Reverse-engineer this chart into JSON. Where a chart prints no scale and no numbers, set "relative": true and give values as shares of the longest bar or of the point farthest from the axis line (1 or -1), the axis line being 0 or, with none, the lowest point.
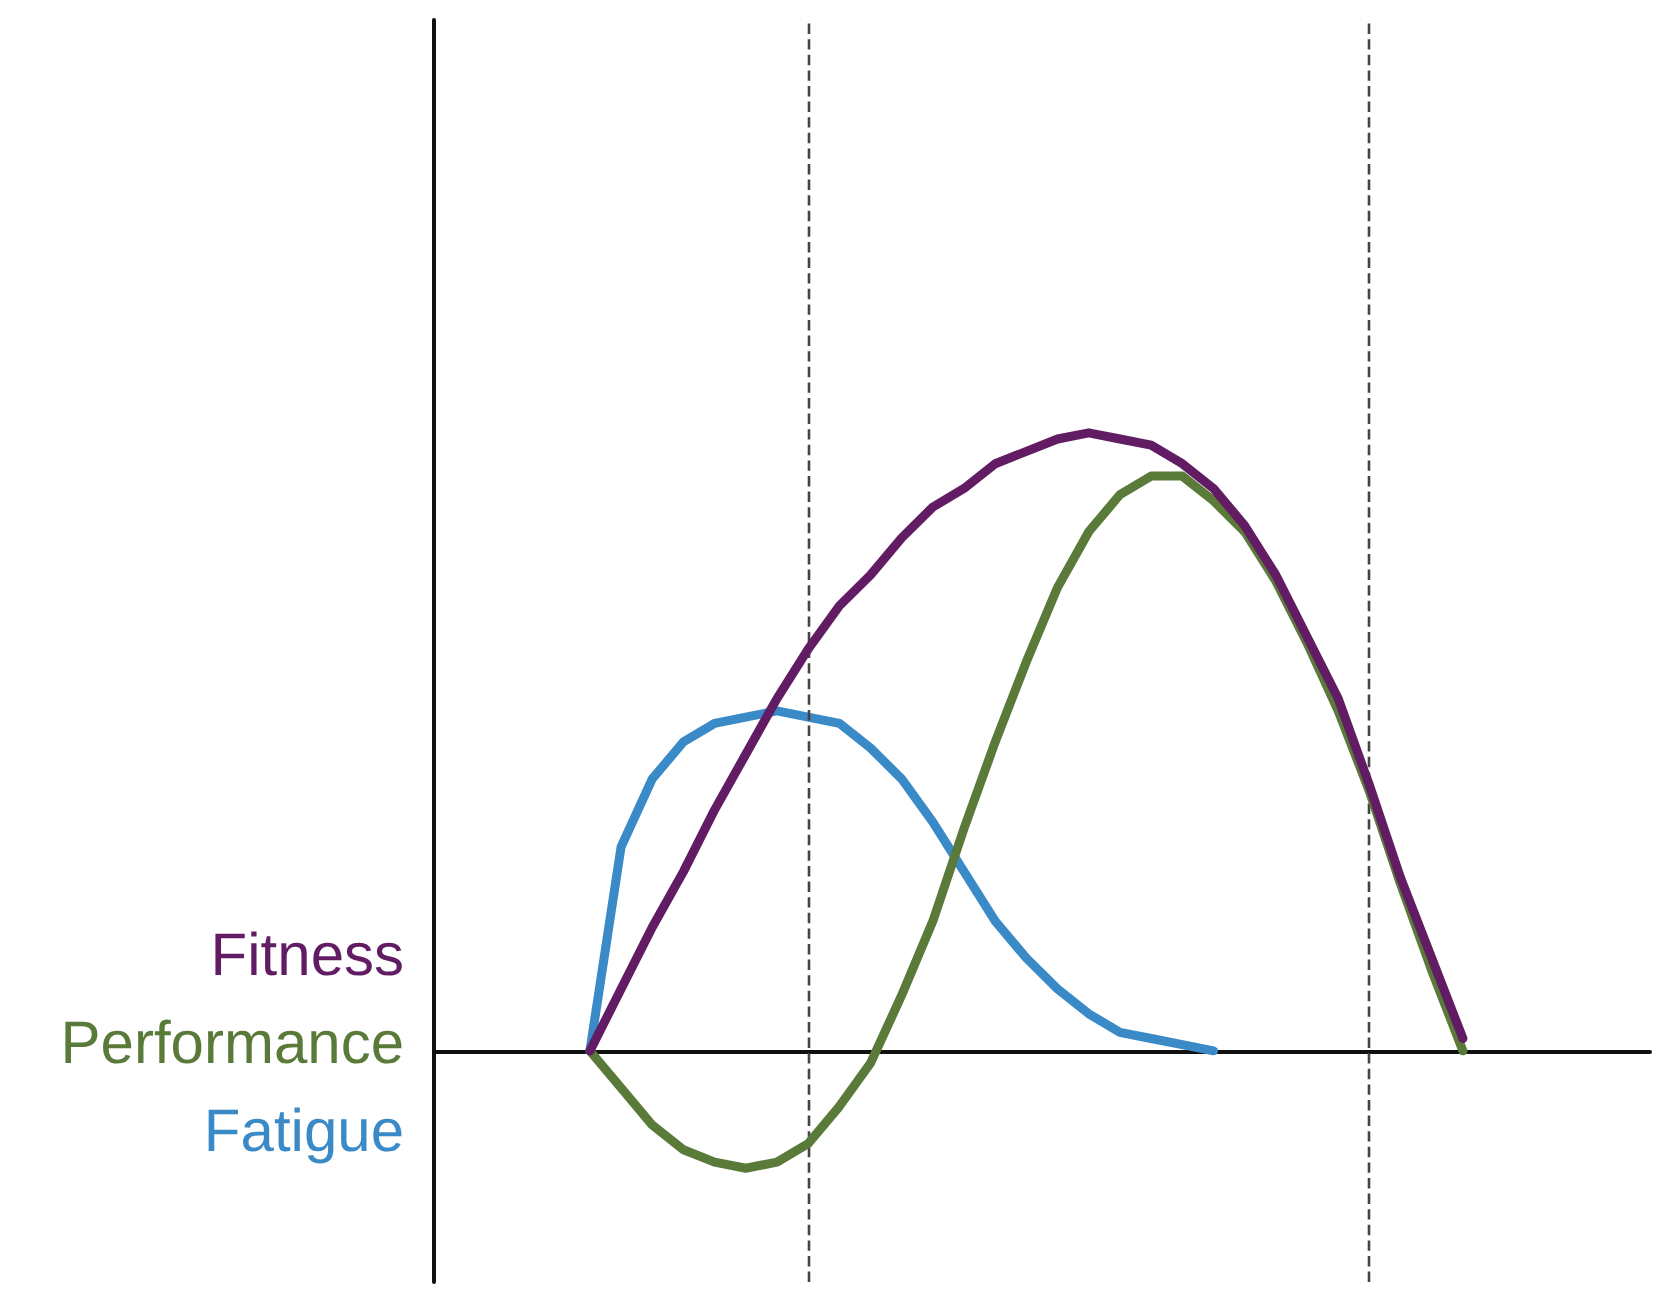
{
  "chart_data": {
    "type": "line",
    "relative": true,
    "legend": "left",
    "marker": "none",
    "line_style": "solid",
    "grid": false,
    "categories": [
      null,
      null,
      null,
      null,
      null,
      null,
      null,
      null,
      null,
      null,
      null,
      null,
      null,
      null,
      null,
      null,
      null,
      null,
      null,
      null,
      null,
      null,
      null,
      null,
      null,
      null,
      null,
      null,
      null,
      null,
      null,
      null,
      null,
      null,
      null,
      null,
      null,
      null,
      null,
      null
    ],
    "series": [
      {
        "name": "Fitness",
        "color": "#621c63",
        "values": [
          null,
          null,
          null,
          null,
          null,
          0,
          0.1,
          0.2,
          0.29,
          0.39,
          0.48,
          0.57,
          0.65,
          0.72,
          0.77,
          0.83,
          0.88,
          0.91,
          0.95,
          0.97,
          0.99,
          1,
          0.99,
          0.98,
          0.95,
          0.91,
          0.85,
          0.77,
          0.67,
          0.57,
          0.43,
          0.28,
          0.15,
          0.02,
          null,
          null,
          null,
          null,
          null,
          null
        ]
      },
      {
        "name": "Performance",
        "color": "#5a7a3a",
        "values": [
          null,
          null,
          null,
          null,
          null,
          0,
          -0.06,
          -0.12,
          -0.16,
          -0.18,
          -0.19,
          -0.18,
          -0.15,
          -0.09,
          -0.02,
          0.09,
          0.21,
          0.36,
          0.5,
          0.63,
          0.75,
          0.84,
          0.9,
          0.93,
          0.93,
          0.89,
          0.84,
          0.76,
          0.66,
          0.55,
          0.42,
          0.27,
          0.13,
          0,
          null,
          null,
          null,
          null,
          null,
          null
        ]
      },
      {
        "name": "Fatigue",
        "color": "#3a8ac8",
        "values": [
          null,
          null,
          null,
          null,
          null,
          0,
          0.33,
          0.44,
          0.5,
          0.53,
          0.54,
          0.55,
          0.54,
          0.53,
          0.49,
          0.44,
          0.37,
          0.29,
          0.21,
          0.15,
          0.1,
          0.06,
          0.03,
          0.02,
          0.01,
          0,
          null,
          null,
          null,
          null,
          null,
          null,
          null,
          null,
          null,
          null,
          null,
          null,
          null,
          null
        ]
      }
    ]
  }
}
